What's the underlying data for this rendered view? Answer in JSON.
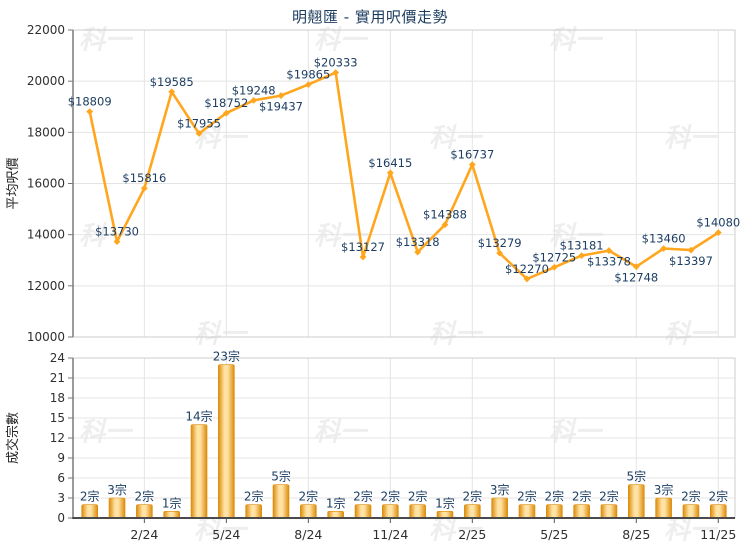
{
  "title": "明翹匯 - 實用呎價走勢",
  "watermark": "科一",
  "colors": {
    "series_orange": "#FFA61E",
    "bar_edge": "#DC8B08",
    "bar_center": "#FFE2A4",
    "data_label_navy": "#1D3E63",
    "axis_text": "#2F2F2F",
    "grid": "#E4E4E4",
    "axis_line_gray": "#9B9B9B",
    "x_axis_dark": "#4A4A4A"
  },
  "chart_data": [
    {
      "type": "line",
      "title": "明翹匯 - 實用呎價走勢",
      "ylabel": "平均呎價",
      "ylim": [
        10000,
        22000
      ],
      "yticks": [
        10000,
        12000,
        14000,
        16000,
        18000,
        20000,
        22000
      ],
      "xtick_labels": [
        "2/24",
        "5/24",
        "8/24",
        "11/24",
        "2/25",
        "5/25",
        "8/25",
        "11/25"
      ],
      "xtick_indices": [
        2,
        5,
        8,
        11,
        14,
        17,
        20,
        23
      ],
      "values": [
        18809,
        13730,
        15816,
        19585,
        17955,
        18752,
        19248,
        19437,
        19865,
        20333,
        13127,
        16415,
        13318,
        14388,
        16737,
        13279,
        12270,
        12725,
        13181,
        13378,
        12748,
        13460,
        13397,
        14080
      ],
      "value_prefix": "$",
      "label_side": [
        "above",
        "above",
        "above",
        "above",
        "above",
        "above",
        "above",
        "below",
        "above",
        "above",
        "above",
        "above",
        "above",
        "above",
        "above",
        "above",
        "above",
        "above",
        "above",
        "below",
        "below",
        "above",
        "below",
        "above"
      ],
      "grid": true,
      "legend": false
    },
    {
      "type": "bar",
      "ylabel": "成交宗數",
      "ylim": [
        0,
        24
      ],
      "yticks": [
        0,
        3,
        6,
        9,
        12,
        15,
        18,
        21,
        24
      ],
      "xtick_labels": [
        "2/24",
        "5/24",
        "8/24",
        "11/24",
        "2/25",
        "5/25",
        "8/25",
        "11/25"
      ],
      "xtick_indices": [
        2,
        5,
        8,
        11,
        14,
        17,
        20,
        23
      ],
      "values": [
        2,
        3,
        2,
        1,
        14,
        23,
        2,
        5,
        2,
        1,
        2,
        2,
        2,
        1,
        2,
        3,
        2,
        2,
        2,
        2,
        5,
        3,
        2,
        2
      ],
      "count_suffix": "宗",
      "grid": true,
      "legend": false
    }
  ]
}
